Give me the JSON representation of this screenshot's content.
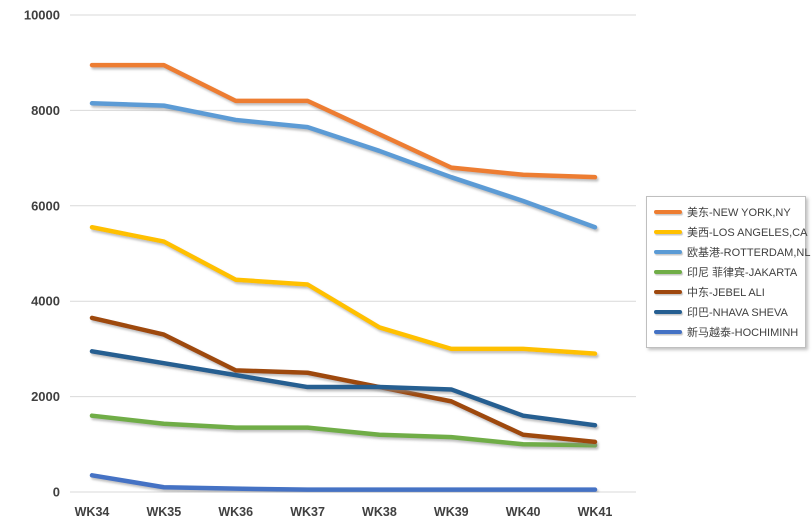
{
  "chart_data": {
    "type": "line",
    "title": "",
    "xlabel": "",
    "ylabel": "",
    "categories": [
      "WK34",
      "WK35",
      "WK36",
      "WK37",
      "WK38",
      "WK39",
      "WK40",
      "WK41"
    ],
    "series": [
      {
        "name": "美东-NEW YORK,NY",
        "color": "#ED7D31",
        "values": [
          8950,
          8950,
          8200,
          8200,
          7500,
          6800,
          6650,
          6600
        ]
      },
      {
        "name": "美西-LOS ANGELES,CA",
        "color": "#FFC000",
        "values": [
          5550,
          5250,
          4450,
          4350,
          3450,
          3000,
          3000,
          2900
        ]
      },
      {
        "name": "欧基港-ROTTERDAM,NL",
        "color": "#5B9BD5",
        "values": [
          8150,
          8100,
          7800,
          7650,
          7150,
          6600,
          6100,
          5550
        ]
      },
      {
        "name": "印尼 菲律宾-JAKARTA",
        "color": "#70AD47",
        "values": [
          1600,
          1430,
          1350,
          1350,
          1200,
          1150,
          1000,
          980
        ]
      },
      {
        "name": "中东-JEBEL ALI",
        "color": "#9E480E",
        "values": [
          3650,
          3300,
          2550,
          2500,
          2200,
          1900,
          1200,
          1050
        ]
      },
      {
        "name": "印巴-NHAVA SHEVA",
        "color": "#255E91",
        "values": [
          2950,
          2700,
          2450,
          2200,
          2200,
          2150,
          1600,
          1400
        ]
      },
      {
        "name": "新马越泰-HOCHIMINH",
        "color": "#4472C4",
        "values": [
          350,
          100,
          70,
          50,
          50,
          50,
          50,
          50
        ]
      }
    ],
    "ylim": [
      0,
      10000
    ],
    "ytick_step": 2000,
    "ytick_labels": [
      "0",
      "2000",
      "4000",
      "6000",
      "8000",
      "10000"
    ],
    "grid": "horizontal-major",
    "legend_position": "right"
  },
  "colors": {
    "background": "#FFFFFF",
    "gridline": "#D9D9D9",
    "axis_text": "#404040",
    "legend_text": "#404040",
    "legend_border": "#BFBFBF"
  }
}
